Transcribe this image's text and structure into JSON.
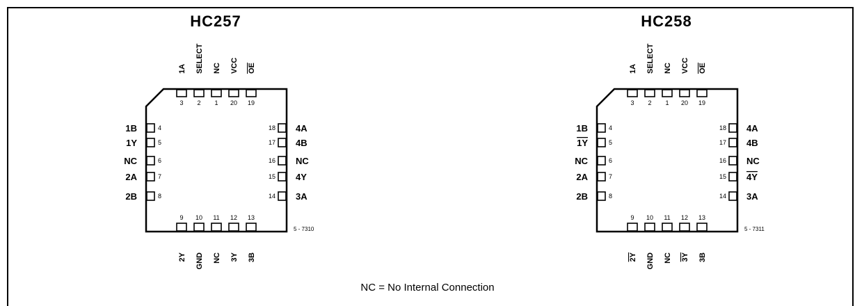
{
  "packages": [
    {
      "title": "HC257",
      "top_pins": [
        {
          "num": "3",
          "label": "1A",
          "overline": false
        },
        {
          "num": "2",
          "label": "SELECT",
          "overline": false
        },
        {
          "num": "1",
          "label": "NC",
          "overline": false
        },
        {
          "num": "20",
          "label": "VCC",
          "overline": false
        },
        {
          "num": "19",
          "label": "OE",
          "overline": true
        }
      ],
      "left_pins": [
        {
          "num": "4",
          "label": "1B",
          "overline": false
        },
        {
          "num": "5",
          "label": "1Y",
          "overline": false
        },
        {
          "num": "6",
          "label": "NC",
          "overline": false
        },
        {
          "num": "7",
          "label": "2A",
          "overline": false
        },
        {
          "num": "8",
          "label": "2B",
          "overline": false
        }
      ],
      "right_pins": [
        {
          "num": "18",
          "label": "4A",
          "overline": false
        },
        {
          "num": "17",
          "label": "4B",
          "overline": false
        },
        {
          "num": "16",
          "label": "NC",
          "overline": false
        },
        {
          "num": "15",
          "label": "4Y",
          "overline": false
        },
        {
          "num": "14",
          "label": "3A",
          "overline": false
        }
      ],
      "bottom_pins": [
        {
          "num": "9",
          "label": "2Y",
          "overline": false
        },
        {
          "num": "10",
          "label": "GND",
          "overline": false
        },
        {
          "num": "11",
          "label": "NC",
          "overline": false
        },
        {
          "num": "12",
          "label": "3Y",
          "overline": false
        },
        {
          "num": "13",
          "label": "3B",
          "overline": false
        }
      ],
      "ref": "5 - 7310"
    },
    {
      "title": "HC258",
      "top_pins": [
        {
          "num": "3",
          "label": "1A",
          "overline": false
        },
        {
          "num": "2",
          "label": "SELECT",
          "overline": false
        },
        {
          "num": "1",
          "label": "NC",
          "overline": false
        },
        {
          "num": "20",
          "label": "VCC",
          "overline": false
        },
        {
          "num": "19",
          "label": "OE",
          "overline": true
        }
      ],
      "left_pins": [
        {
          "num": "4",
          "label": "1B",
          "overline": false
        },
        {
          "num": "5",
          "label": "1Y",
          "overline": true
        },
        {
          "num": "6",
          "label": "NC",
          "overline": false
        },
        {
          "num": "7",
          "label": "2A",
          "overline": false
        },
        {
          "num": "8",
          "label": "2B",
          "overline": false
        }
      ],
      "right_pins": [
        {
          "num": "18",
          "label": "4A",
          "overline": false
        },
        {
          "num": "17",
          "label": "4B",
          "overline": false
        },
        {
          "num": "16",
          "label": "NC",
          "overline": false
        },
        {
          "num": "15",
          "label": "4Y",
          "overline": true
        },
        {
          "num": "14",
          "label": "3A",
          "overline": false
        }
      ],
      "bottom_pins": [
        {
          "num": "9",
          "label": "2Y",
          "overline": true
        },
        {
          "num": "10",
          "label": "GND",
          "overline": false
        },
        {
          "num": "11",
          "label": "NC",
          "overline": false
        },
        {
          "num": "12",
          "label": "3Y",
          "overline": true
        },
        {
          "num": "13",
          "label": "3B",
          "overline": false
        }
      ],
      "ref": "5 - 7311"
    }
  ],
  "legend": "NC = No Internal Connection"
}
